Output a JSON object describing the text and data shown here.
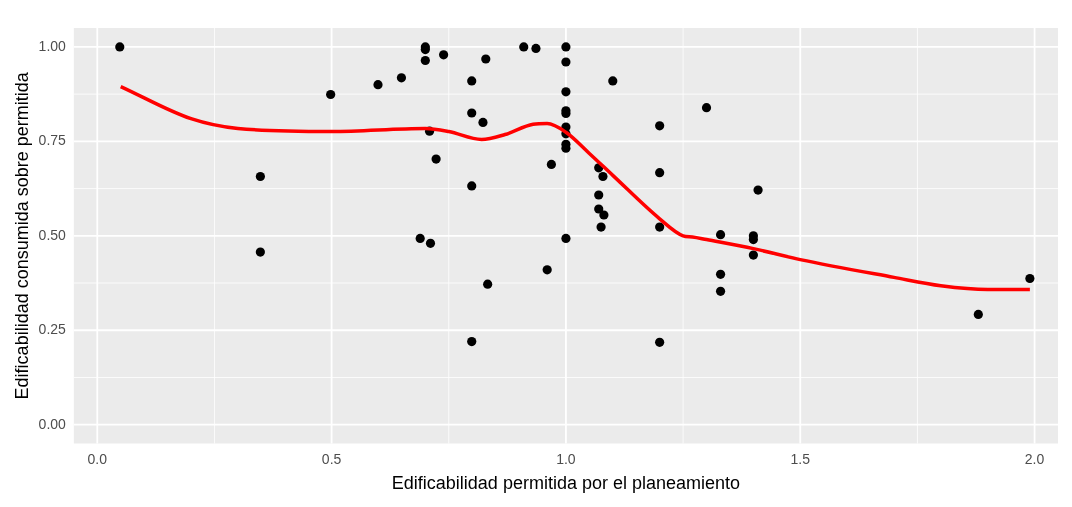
{
  "chart_data": {
    "type": "scatter",
    "xlabel": "Edificabilidad permitida por el planeamiento",
    "ylabel": "Edificabilidad consumida sobre permitida",
    "xlim": [
      -0.05,
      2.05
    ],
    "ylim": [
      -0.05,
      1.05
    ],
    "xticks": [
      {
        "value": 0,
        "label": "0.0"
      },
      {
        "value": 0.5,
        "label": "0.5"
      },
      {
        "value": 1,
        "label": "1.0"
      },
      {
        "value": 1.5,
        "label": "1.5"
      },
      {
        "value": 2,
        "label": "2.0"
      }
    ],
    "yticks": [
      {
        "value": 0,
        "label": "0.00"
      },
      {
        "value": 0.25,
        "label": "0.25"
      },
      {
        "value": 0.5,
        "label": "0.50"
      },
      {
        "value": 0.75,
        "label": "0.75"
      },
      {
        "value": 1,
        "label": "1.00"
      }
    ],
    "grid": true,
    "legend": false,
    "series": [
      {
        "color": "#000000",
        "marker": "circle",
        "x": [
          0.048,
          0.348,
          0.348,
          0.498,
          0.599,
          0.649,
          0.7,
          0.7,
          0.7,
          0.739,
          0.709,
          0.723,
          0.689,
          0.711,
          0.799,
          0.799,
          0.823,
          0.829,
          0.799,
          0.833,
          0.799,
          0.91,
          0.936,
          1.0,
          1.0,
          1.0,
          1.0,
          1.0,
          1.0,
          1.0,
          1.0,
          1.0,
          0.969,
          0.96,
          1.0,
          1.1,
          1.07,
          1.079,
          1.07,
          1.07,
          1.081,
          1.075,
          1.2,
          1.2,
          1.2,
          1.2,
          1.3,
          1.33,
          1.33,
          1.33,
          1.41,
          1.4,
          1.4,
          1.4,
          1.88,
          1.99
        ],
        "values": [
          1.0,
          0.657,
          0.457,
          0.874,
          0.9,
          0.918,
          1.0,
          0.993,
          0.964,
          0.979,
          0.777,
          0.703,
          0.493,
          0.48,
          0.91,
          0.825,
          0.8,
          0.968,
          0.632,
          0.372,
          0.22,
          1.0,
          0.996,
          1.0,
          0.96,
          0.881,
          0.831,
          0.824,
          0.788,
          0.77,
          0.742,
          0.732,
          0.689,
          0.41,
          0.493,
          0.91,
          0.68,
          0.657,
          0.608,
          0.571,
          0.555,
          0.523,
          0.791,
          0.667,
          0.523,
          0.218,
          0.839,
          0.503,
          0.398,
          0.353,
          0.621,
          0.5,
          0.49,
          0.449,
          0.292,
          0.387
        ]
      },
      {
        "type": "line",
        "color": "#ff0000",
        "marker": "none",
        "line_style": "solid",
        "x": [
          0.05,
          0.2,
          0.3,
          0.5,
          0.7,
          0.75,
          0.82,
          0.87,
          0.93,
          0.96,
          1.0,
          1.05,
          1.1,
          1.2,
          1.25,
          1.27,
          1.3,
          1.4,
          1.5,
          1.7,
          1.8,
          1.9,
          1.99
        ],
        "values": [
          0.895,
          0.81,
          0.784,
          0.776,
          0.784,
          0.776,
          0.755,
          0.768,
          0.795,
          0.797,
          0.774,
          0.718,
          0.66,
          0.545,
          0.5,
          0.497,
          0.49,
          0.466,
          0.437,
          0.39,
          0.368,
          0.358,
          0.358
        ]
      }
    ]
  }
}
